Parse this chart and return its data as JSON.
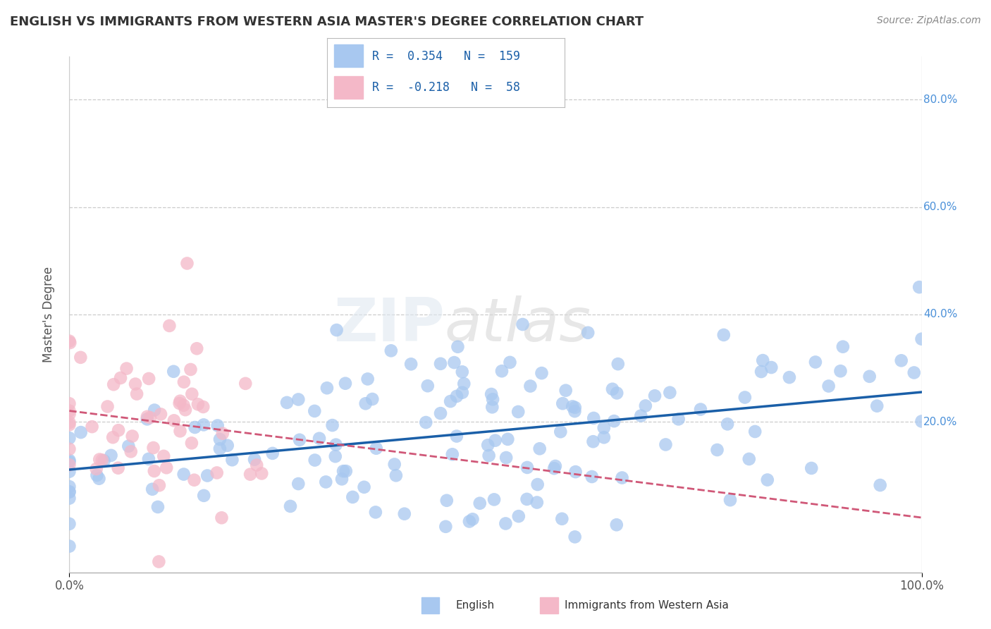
{
  "title": "ENGLISH VS IMMIGRANTS FROM WESTERN ASIA MASTER'S DEGREE CORRELATION CHART",
  "source_text": "Source: ZipAtlas.com",
  "ylabel": "Master's Degree",
  "xtick_labels_left": "0.0%",
  "xtick_labels_right": "100.0%",
  "ytick_labels": [
    "20.0%",
    "40.0%",
    "60.0%",
    "80.0%"
  ],
  "ytick_vals": [
    0.2,
    0.4,
    0.6,
    0.8
  ],
  "legend_entries": [
    {
      "label": "English",
      "color": "#a8c8f0",
      "r": "0.354",
      "n": "159"
    },
    {
      "label": "Immigrants from Western Asia",
      "color": "#f4b8c8",
      "r": "-0.218",
      "n": "58"
    }
  ],
  "blue_scatter_color": "#a8c8f0",
  "pink_scatter_color": "#f4b8c8",
  "blue_line_color": "#1a5fa8",
  "pink_line_color": "#d05878",
  "watermark_zip": "ZIP",
  "watermark_atlas": "atlas",
  "background_color": "#ffffff",
  "grid_color": "#cccccc",
  "blue_r": 0.354,
  "pink_r": -0.218,
  "blue_n": 159,
  "pink_n": 58,
  "xlim": [
    0.0,
    1.0
  ],
  "ylim": [
    -0.08,
    0.88
  ],
  "title_color": "#333333",
  "source_color": "#888888",
  "tick_color": "#4a90d9",
  "axis_label_color": "#555555"
}
